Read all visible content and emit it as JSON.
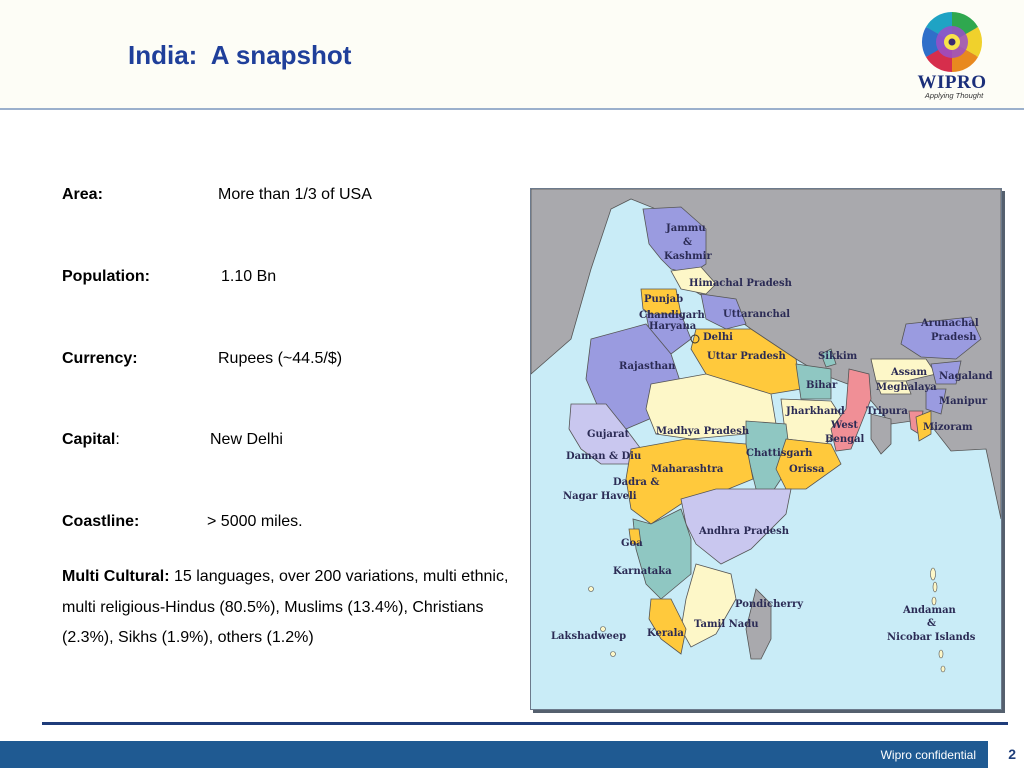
{
  "header": {
    "title": "India:  A snapshot"
  },
  "logo": {
    "brand": "WIPRO",
    "tagline": "Applying Thought"
  },
  "facts": [
    {
      "label": "Area:",
      "value": "More than 1/3 of USA"
    },
    {
      "label": "Population:",
      "value": "1.10 Bn"
    },
    {
      "label": "Currency:",
      "value": "Rupees (~44.5/$)"
    },
    {
      "label": "Capital",
      "label_suffix": ":",
      "value": "New Delhi"
    },
    {
      "label": "Coastline:",
      "value": "> 5000 miles."
    }
  ],
  "multicultural": {
    "label": "Multi Cultural:",
    "text": " 15 languages, over 200 variations, multi ethnic, multi religious-Hindus (80.5%), Muslims (13.4%), Christians (2.3%), Sikhs (1.9%), others (1.2%)"
  },
  "map": {
    "labels": {
      "jammu_kashmir": [
        "Jammu",
        "&",
        "Kashmir"
      ],
      "himachal": "Himachal Pradesh",
      "punjab": "Punjab",
      "chandigarh": "Chandigarh",
      "haryana": "Haryana",
      "uttaranchal": "Uttaranchal",
      "delhi": "Delhi",
      "rajasthan": "Rajasthan",
      "uttar_pradesh": "Uttar Pradesh",
      "sikkim": "Sikkim",
      "arunachal": [
        "Arunachal",
        "Pradesh"
      ],
      "assam": "Assam",
      "nagaland": "Nagaland",
      "meghalaya": "Meghalaya",
      "manipur": "Manipur",
      "bihar": "Bihar",
      "jharkhand": "Jharkhand",
      "west_bengal": [
        "West",
        "Bengal"
      ],
      "tripura": "Tripura",
      "mizoram": "Mizoram",
      "gujarat": "Gujarat",
      "madhya_pradesh": "Madhya Pradesh",
      "chattisgarh": "Chattisgarh",
      "daman_diu": "Daman & Diu",
      "dadra": [
        "Dadra &",
        "Nagar Haveli"
      ],
      "maharashtra": "Maharashtra",
      "orissa": "Orissa",
      "andhra_pradesh": "Andhra Pradesh",
      "goa": "Goa",
      "karnataka": "Karnataka",
      "pondicherry": "Pondicherry",
      "andaman": [
        "Andaman",
        "&",
        "Nicobar Islands"
      ],
      "lakshadweep": "Lakshadweep",
      "kerala": "Kerala",
      "tamil_nadu": "Tamil Nadu"
    }
  },
  "footer": {
    "confidential": "Wipro confidential",
    "page": "2"
  },
  "colors": {
    "title": "#1f3f9a",
    "purple_state": "#9a9be0",
    "yellow_state": "#ffc93c",
    "teal_state": "#8fc7c2",
    "cream_state": "#fdf7c8",
    "pink_state": "#f08f96",
    "neighbor_land": "#a9a9ad",
    "sea": "#c9ecf7",
    "footer_bar": "#1f5a92"
  }
}
